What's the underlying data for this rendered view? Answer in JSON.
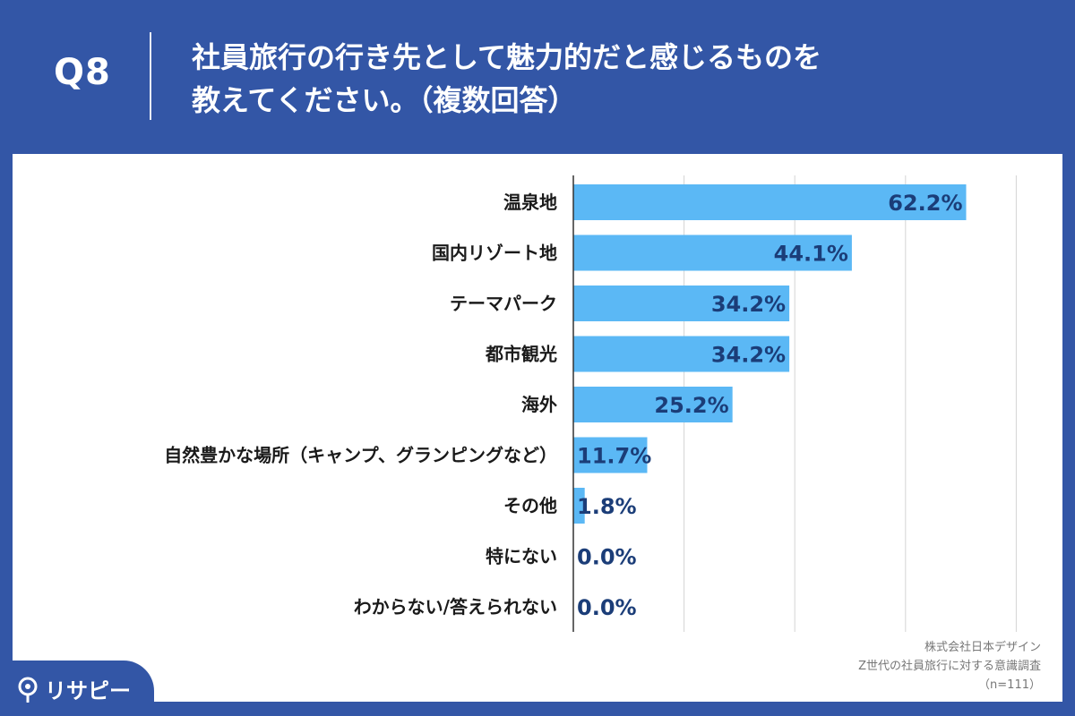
{
  "header": {
    "question_number": "Q8",
    "title_line1": "社員旅行の行き先として魅力的だと感じるものを",
    "title_line2": "教えてください。（複数回答）"
  },
  "source": {
    "company": "株式会社日本デザイン",
    "survey": "Z世代の社員旅行に対する意識調査",
    "sample": "（n=111）"
  },
  "logo": {
    "text": "リサピー",
    "icon": "pin-search-icon"
  },
  "colors": {
    "bar": "#5BB8F5",
    "header": "#3356A6",
    "value_text": "#1b3d78"
  },
  "chart_data": {
    "type": "bar",
    "orientation": "horizontal",
    "categories": [
      "温泉地",
      "国内リゾート地",
      "テーマパーク",
      "都市観光",
      "海外",
      "自然豊かな場所（キャンプ、グランピングなど）",
      "その他",
      "特にない",
      "わからない/答えられない"
    ],
    "values": [
      62.2,
      44.1,
      34.2,
      34.2,
      25.2,
      11.7,
      1.8,
      0.0,
      0.0
    ],
    "value_labels": [
      "62.2%",
      "44.1%",
      "34.2%",
      "34.2%",
      "25.2%",
      "11.7%",
      "1.8%",
      "0.0%",
      "0.0%"
    ],
    "xlim": [
      0,
      70
    ],
    "grid": true,
    "title": "",
    "xlabel": "",
    "ylabel": ""
  }
}
